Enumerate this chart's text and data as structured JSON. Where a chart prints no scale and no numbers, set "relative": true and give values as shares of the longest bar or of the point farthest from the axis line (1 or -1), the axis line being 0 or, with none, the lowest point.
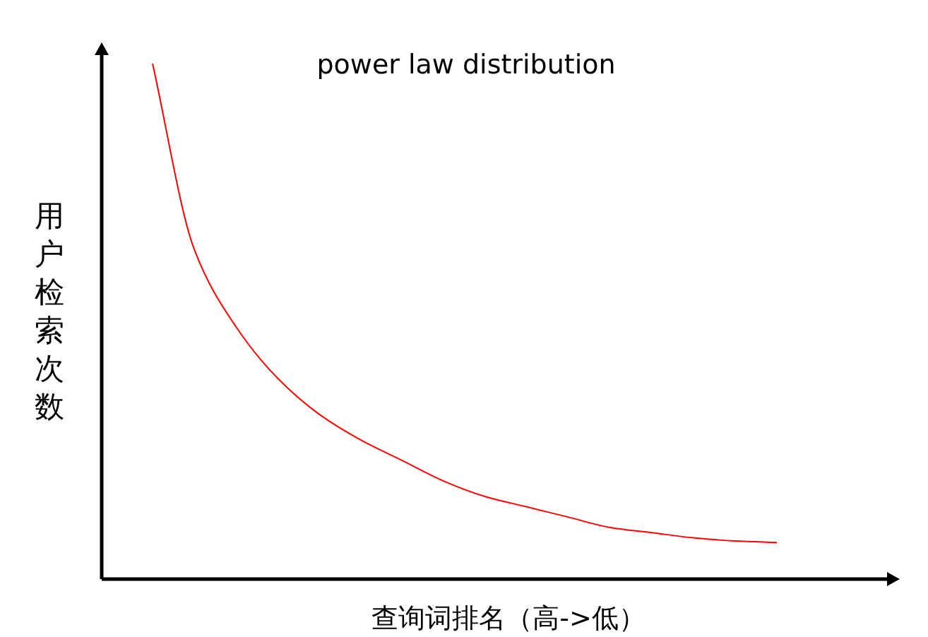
{
  "chart_data": {
    "type": "line",
    "relative": true,
    "title": "power law distribution",
    "xlabel": "查询词排名（高->低）",
    "ylabel": "用户检索次数",
    "categories": [
      null,
      null,
      null,
      null,
      null,
      null,
      null,
      null,
      null,
      null,
      null,
      null,
      null,
      null,
      null,
      null
    ],
    "series": [
      {
        "color": "#ff0000",
        "values": [
          1.0,
          0.64,
          0.49,
          0.39,
          0.32,
          0.27,
          0.23,
          0.19,
          0.16,
          0.14,
          0.12,
          0.1,
          0.09,
          0.08,
          0.074,
          0.071
        ]
      }
    ]
  }
}
